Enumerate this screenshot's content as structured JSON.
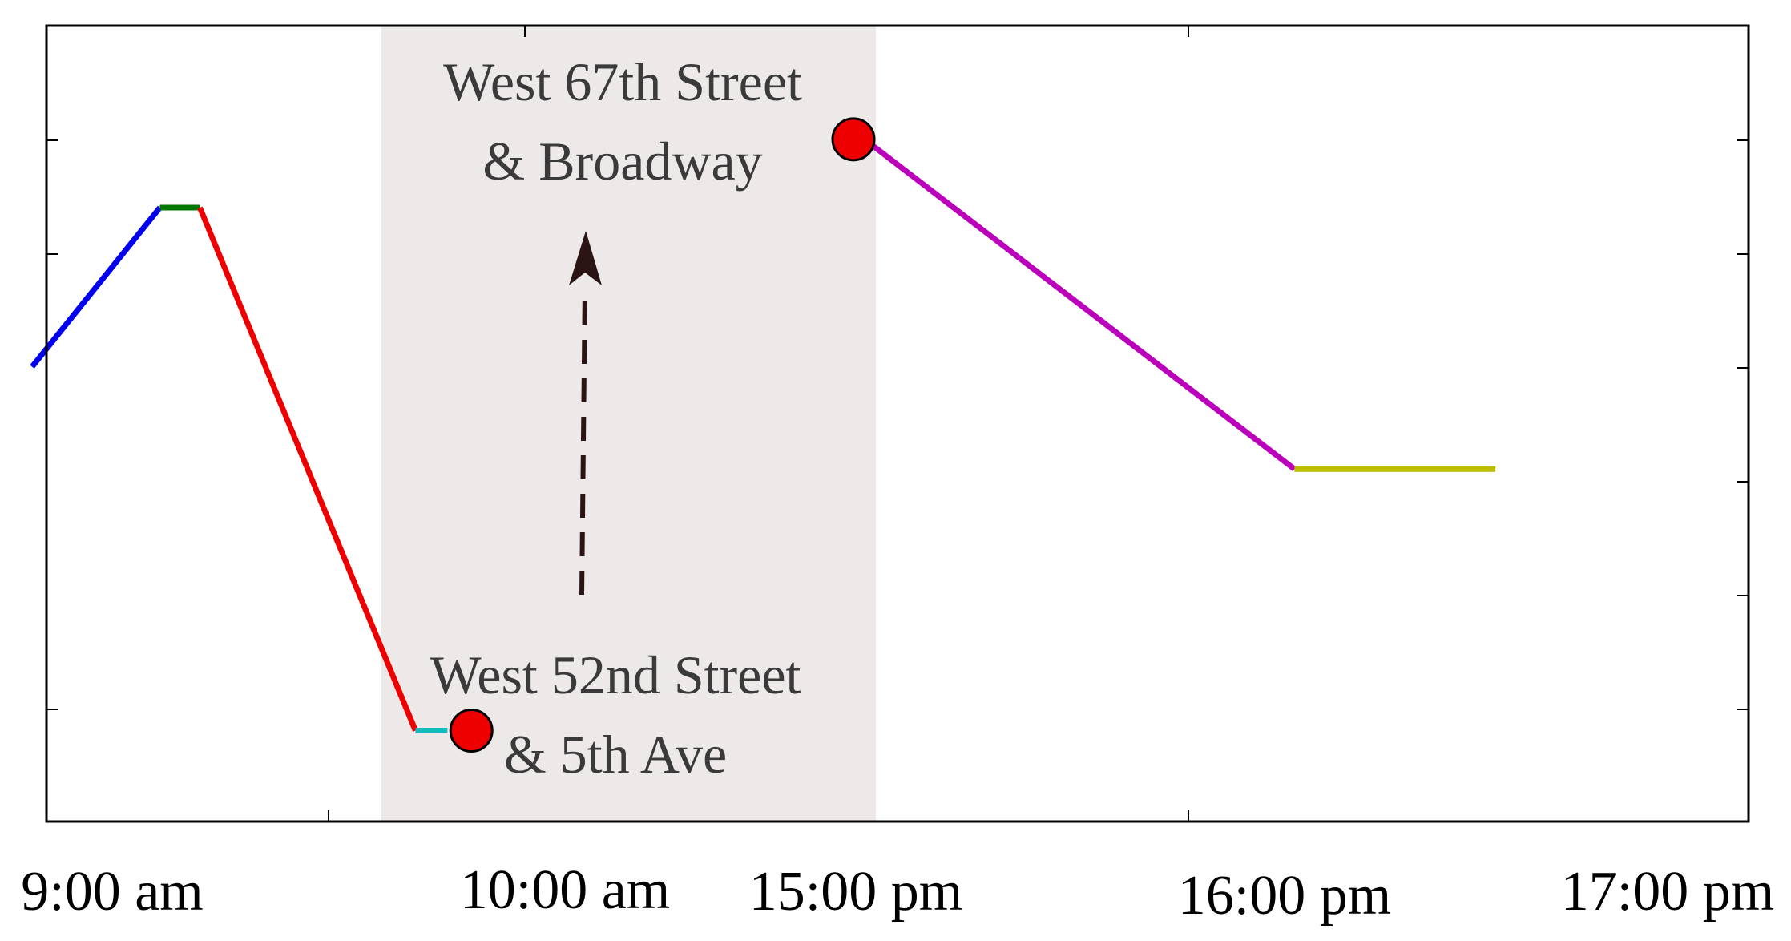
{
  "colors": {
    "background": "#ffffff",
    "axis": "#000000",
    "shaded_region": "#ece9e8",
    "marker_fill": "#ee0000",
    "marker_stroke": "#000000",
    "arrow": "#2a1414",
    "label_text": "#3a3a3a"
  },
  "chart_data": {
    "type": "line",
    "title": "",
    "xlabel": "",
    "ylabel": "",
    "grid": false,
    "legend": "none",
    "x_axis": {
      "break_after": "10:00 am",
      "tick_labels": [
        "9:00 am",
        "10:00 am",
        "15:00 pm",
        "16:00 pm",
        "17:00 pm"
      ]
    },
    "series": [
      {
        "color": "#0000ee",
        "points": [
          [
            "8:58 am",
            4.0
          ],
          [
            "9:14 am",
            5.4
          ]
        ]
      },
      {
        "color": "#007700",
        "points": [
          [
            "9:14 am",
            5.4
          ],
          [
            "9:19 am",
            5.4
          ]
        ]
      },
      {
        "color": "#ee0000",
        "points": [
          [
            "9:19 am",
            5.4
          ],
          [
            "9:46 am",
            0.8
          ]
        ]
      },
      {
        "color": "#11bbbb",
        "points": [
          [
            "9:46 am",
            0.8
          ],
          [
            "9:50 am",
            0.8
          ]
        ]
      },
      {
        "color": "#bb00bb",
        "points": [
          [
            "15:02 pm",
            6.0
          ],
          [
            "16:19 pm",
            3.1
          ]
        ]
      },
      {
        "color": "#bbbb00",
        "points": [
          [
            "16:19 pm",
            3.1
          ],
          [
            "16:55 pm",
            3.1
          ]
        ]
      }
    ],
    "markers": [
      {
        "x": "9:53 am",
        "y": 0.8
      },
      {
        "x": "15:00 pm",
        "y": 6.0
      }
    ],
    "annotations": [
      {
        "lines": [
          "West 67th Street",
          "& Broadway"
        ]
      },
      {
        "lines": [
          "West 52nd Street",
          "& 5th Ave"
        ]
      }
    ],
    "ylim": [
      0,
      7
    ]
  }
}
